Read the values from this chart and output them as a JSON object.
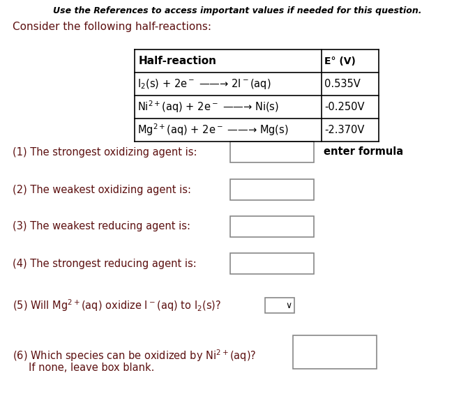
{
  "title": "Use the References to access important values if needed for this question.",
  "intro": "Consider the following half-reactions:",
  "table_header": [
    "Half-reaction",
    "E° (V)"
  ],
  "row1": [
    "I$_2$(s) + 2e$^-$ ——→ 2I$^-$(aq)",
    "0.535V"
  ],
  "row2": [
    "Ni$^{2+}$(aq) + 2e$^-$ ——→ Ni(s)",
    "-0.250V"
  ],
  "row3": [
    "Mg$^{2+}$(aq) + 2e$^-$ ——→ Mg(s)",
    "-2.370V"
  ],
  "q1": "(1) The strongest oxidizing agent is:",
  "q2": "(2) The weakest oxidizing agent is:",
  "q3": "(3) The weakest reducing agent is:",
  "q4": "(4) The strongest reducing agent is:",
  "q1_suffix": "enter formula",
  "q5": "(5) Will Mg$^{2+}$(aq) oxidize I$^-$(aq) to I$_2$(s)?",
  "q6_line1": "(6) Which species can be oxidized by Ni$^{2+}$(aq)?",
  "q6_line2": "     If none, leave box blank.",
  "text_color": "#000000",
  "question_color": "#5c1010",
  "title_color": "#000000",
  "bg_color": "#ffffff",
  "q1_suffix_color": "#000000",
  "box_edge_color": "#888888",
  "table_text_color": "#000000"
}
